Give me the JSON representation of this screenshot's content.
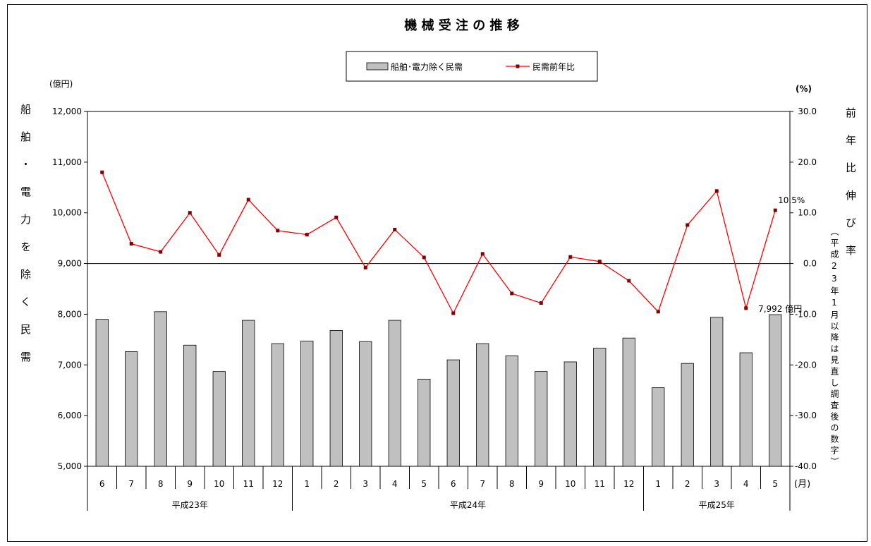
{
  "chart_data": {
    "type": "bar+line",
    "title": "機 械 受 注 の 推 移",
    "legend": {
      "placement": "top-center",
      "bar_label": "船舶･電力除く民需",
      "line_label": "民需前年比"
    },
    "left_axis": {
      "unit": "(億円)",
      "title": "船舶・電力を除く民需",
      "ylim": [
        5000,
        12000
      ],
      "ticks": [
        "5,000",
        "6,000",
        "7,000",
        "8,000",
        "9,000",
        "10,000",
        "11,000",
        "12,000"
      ]
    },
    "right_axis": {
      "unit": "(%)",
      "title": "前年比伸び率",
      "note": "（平成23年1月以降は見直し調査後の数字）",
      "ylim": [
        -40,
        30
      ],
      "ticks": [
        "-40.0",
        "-30.0",
        "-20.0",
        "-10.0",
        "0.0",
        "10.0",
        "20.0",
        "30.0"
      ]
    },
    "x_unit": "(月)",
    "categories": [
      "6",
      "7",
      "8",
      "9",
      "10",
      "11",
      "12",
      "1",
      "2",
      "3",
      "4",
      "5",
      "6",
      "7",
      "8",
      "9",
      "10",
      "11",
      "12",
      "1",
      "2",
      "3",
      "4",
      "5"
    ],
    "year_groups": [
      {
        "label": "平成23年",
        "count": 7
      },
      {
        "label": "平成24年",
        "count": 12
      },
      {
        "label": "平成25年",
        "count": 5
      }
    ],
    "series": [
      {
        "name": "船舶･電力除く民需",
        "type": "bar",
        "axis": "left",
        "color": "#c0c0c0",
        "values": [
          7900,
          7260,
          8050,
          7390,
          6870,
          7880,
          7420,
          7470,
          7680,
          7460,
          7880,
          6720,
          7100,
          7420,
          7180,
          6870,
          7060,
          7330,
          7530,
          6550,
          7030,
          7940,
          7240,
          7992
        ]
      },
      {
        "name": "民需前年比",
        "type": "line",
        "axis": "right",
        "color": "#ff0000",
        "marker_color": "#800000",
        "values": [
          18.0,
          3.9,
          2.3,
          10.0,
          1.7,
          12.6,
          6.5,
          5.7,
          9.1,
          -0.8,
          6.7,
          1.2,
          -9.8,
          1.9,
          -5.9,
          -7.8,
          1.3,
          0.4,
          -3.4,
          -9.5,
          7.6,
          14.3,
          -8.8,
          10.5
        ]
      }
    ],
    "annotations": {
      "last_bar": "7,992 億円",
      "last_line": "10.5%"
    }
  }
}
